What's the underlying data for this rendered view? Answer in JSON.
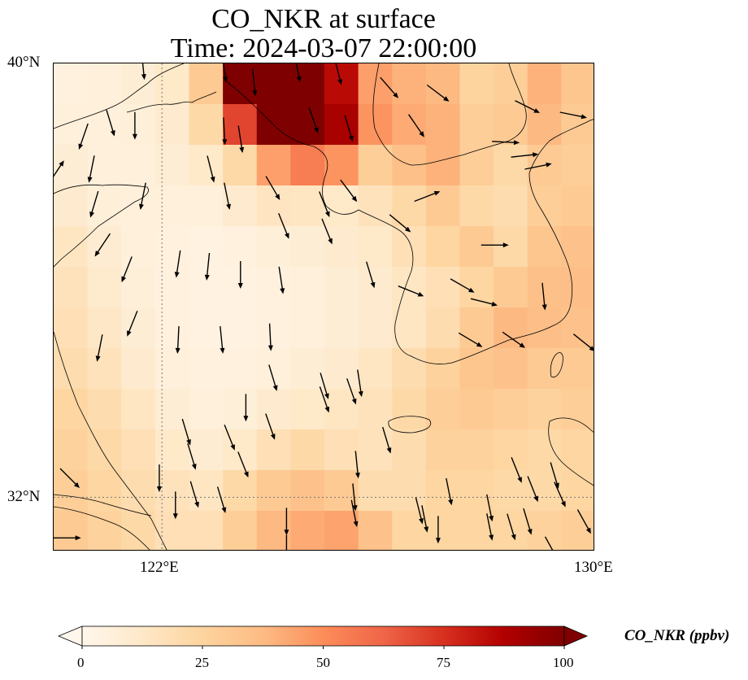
{
  "title": {
    "line1": "CO_NKR at surface",
    "line2": "Time: 2024-03-07 22:00:00"
  },
  "map": {
    "lat_labels": [
      "40°N",
      "32°N"
    ],
    "lon_labels": [
      "122°E",
      "130°E"
    ],
    "lat_range": [
      31,
      40
    ],
    "lon_range": [
      120,
      130
    ],
    "gridlines": {
      "lat": 32,
      "lon": 122,
      "style": "dotted"
    },
    "field_concentration_ppbv": [
      [
        5,
        6,
        8,
        12,
        30,
        100,
        100,
        100,
        85,
        45,
        40,
        38,
        25,
        28,
        40,
        32
      ],
      [
        6,
        6,
        7,
        10,
        22,
        70,
        100,
        100,
        90,
        48,
        42,
        40,
        28,
        30,
        38,
        30
      ],
      [
        8,
        6,
        6,
        8,
        12,
        22,
        45,
        55,
        48,
        28,
        35,
        40,
        28,
        22,
        30,
        28
      ],
      [
        10,
        7,
        6,
        6,
        6,
        10,
        15,
        14,
        12,
        16,
        22,
        30,
        22,
        20,
        28,
        30
      ],
      [
        14,
        9,
        6,
        5,
        4,
        5,
        7,
        8,
        10,
        12,
        18,
        24,
        30,
        22,
        32,
        34
      ],
      [
        16,
        11,
        7,
        5,
        4,
        4,
        5,
        6,
        8,
        10,
        14,
        18,
        24,
        30,
        35,
        36
      ],
      [
        18,
        13,
        8,
        5,
        4,
        4,
        5,
        6,
        8,
        10,
        14,
        20,
        30,
        38,
        36,
        34
      ],
      [
        20,
        16,
        10,
        6,
        5,
        5,
        6,
        8,
        10,
        14,
        20,
        26,
        32,
        34,
        30,
        30
      ],
      [
        24,
        20,
        14,
        8,
        6,
        7,
        10,
        12,
        14,
        16,
        22,
        28,
        30,
        28,
        26,
        28
      ],
      [
        26,
        22,
        18,
        12,
        9,
        12,
        18,
        22,
        18,
        16,
        20,
        26,
        26,
        24,
        22,
        24
      ],
      [
        28,
        24,
        20,
        16,
        14,
        22,
        30,
        34,
        30,
        20,
        20,
        24,
        24,
        22,
        22,
        24
      ],
      [
        30,
        26,
        22,
        18,
        18,
        28,
        38,
        42,
        44,
        34,
        24,
        24,
        24,
        24,
        26,
        28
      ]
    ],
    "wind_arrows": [
      {
        "lon": 121.65,
        "lat": 39.95,
        "u": 0.1,
        "v": -1.0
      },
      {
        "lon": 121.05,
        "lat": 38.9,
        "u": 0.3,
        "v": -1.0
      },
      {
        "lon": 121.5,
        "lat": 38.85,
        "u": 0.0,
        "v": -1.0
      },
      {
        "lon": 123.15,
        "lat": 39.9,
        "u": 0.15,
        "v": -1.0
      },
      {
        "lon": 123.7,
        "lat": 39.65,
        "u": 0.1,
        "v": -1.0
      },
      {
        "lon": 124.5,
        "lat": 39.9,
        "u": 0.2,
        "v": -1.0
      },
      {
        "lon": 125.25,
        "lat": 39.85,
        "u": 0.25,
        "v": -1.0
      },
      {
        "lon": 126.2,
        "lat": 39.55,
        "u": 0.65,
        "v": -0.75
      },
      {
        "lon": 127.1,
        "lat": 39.45,
        "u": 0.8,
        "v": -0.6
      },
      {
        "lon": 128.75,
        "lat": 39.2,
        "u": 1.0,
        "v": -0.5
      },
      {
        "lon": 129.6,
        "lat": 39.05,
        "u": 1.0,
        "v": -0.2
      },
      {
        "lon": 123.15,
        "lat": 38.75,
        "u": 0.05,
        "v": -1.0
      },
      {
        "lon": 123.45,
        "lat": 38.6,
        "u": 0.15,
        "v": -1.0
      },
      {
        "lon": 124.8,
        "lat": 38.95,
        "u": 0.35,
        "v": -1.0
      },
      {
        "lon": 125.45,
        "lat": 38.8,
        "u": 0.3,
        "v": -1.0
      },
      {
        "lon": 126.7,
        "lat": 38.85,
        "u": 0.55,
        "v": -0.8
      },
      {
        "lon": 128.35,
        "lat": 38.55,
        "u": 1.0,
        "v": -0.05
      },
      {
        "lon": 128.7,
        "lat": 38.3,
        "u": 0.9,
        "v": 0.1
      },
      {
        "lon": 128.95,
        "lat": 38.1,
        "u": 1.0,
        "v": 0.2
      },
      {
        "lon": 120.55,
        "lat": 38.65,
        "u": -0.35,
        "v": -1.0
      },
      {
        "lon": 120.7,
        "lat": 38.05,
        "u": -0.2,
        "v": -1.0
      },
      {
        "lon": 120.75,
        "lat": 37.4,
        "u": -0.3,
        "v": -1.0
      },
      {
        "lon": 121.65,
        "lat": 37.55,
        "u": -0.2,
        "v": -1.0
      },
      {
        "lon": 122.9,
        "lat": 38.05,
        "u": 0.25,
        "v": -1.0
      },
      {
        "lon": 123.2,
        "lat": 37.55,
        "u": 0.2,
        "v": -1.0
      },
      {
        "lon": 124.05,
        "lat": 37.7,
        "u": 0.5,
        "v": -0.85
      },
      {
        "lon": 124.25,
        "lat": 37.0,
        "u": 0.4,
        "v": -1.0
      },
      {
        "lon": 125.0,
        "lat": 37.4,
        "u": 0.4,
        "v": -1.0
      },
      {
        "lon": 125.05,
        "lat": 36.9,
        "u": 0.4,
        "v": -1.0
      },
      {
        "lon": 125.45,
        "lat": 37.65,
        "u": 0.6,
        "v": -0.8
      },
      {
        "lon": 126.4,
        "lat": 37.05,
        "u": 0.6,
        "v": -0.5
      },
      {
        "lon": 126.9,
        "lat": 37.55,
        "u": 0.9,
        "v": 0.35
      },
      {
        "lon": 128.15,
        "lat": 36.65,
        "u": 1.0,
        "v": 0.0
      },
      {
        "lon": 120.9,
        "lat": 36.65,
        "u": -0.6,
        "v": -0.9
      },
      {
        "lon": 121.35,
        "lat": 36.2,
        "u": -0.4,
        "v": -1.0
      },
      {
        "lon": 122.3,
        "lat": 36.3,
        "u": -0.15,
        "v": -1.0
      },
      {
        "lon": 122.85,
        "lat": 36.25,
        "u": -0.1,
        "v": -1.0
      },
      {
        "lon": 123.45,
        "lat": 36.1,
        "u": 0.0,
        "v": -1.0
      },
      {
        "lon": 124.2,
        "lat": 36.0,
        "u": 0.15,
        "v": -1.0
      },
      {
        "lon": 125.85,
        "lat": 36.1,
        "u": 0.3,
        "v": -1.0
      },
      {
        "lon": 126.6,
        "lat": 35.8,
        "u": 1.0,
        "v": -0.4
      },
      {
        "lon": 127.55,
        "lat": 35.9,
        "u": 0.7,
        "v": -0.4
      },
      {
        "lon": 127.95,
        "lat": 35.6,
        "u": 0.8,
        "v": -0.2
      },
      {
        "lon": 129.05,
        "lat": 35.7,
        "u": 0.1,
        "v": -1.0
      },
      {
        "lon": 121.45,
        "lat": 35.2,
        "u": -0.4,
        "v": -1.0
      },
      {
        "lon": 122.3,
        "lat": 34.9,
        "u": -0.05,
        "v": -1.0
      },
      {
        "lon": 123.1,
        "lat": 34.9,
        "u": 0.1,
        "v": -1.0
      },
      {
        "lon": 124.0,
        "lat": 34.95,
        "u": 0.05,
        "v": -1.0
      },
      {
        "lon": 124.05,
        "lat": 34.2,
        "u": 0.3,
        "v": -1.0
      },
      {
        "lon": 125.0,
        "lat": 34.05,
        "u": 0.3,
        "v": -1.0
      },
      {
        "lon": 125.0,
        "lat": 33.8,
        "u": 0.35,
        "v": -1.0
      },
      {
        "lon": 125.5,
        "lat": 33.95,
        "u": 0.35,
        "v": -1.0
      },
      {
        "lon": 125.65,
        "lat": 34.1,
        "u": 0.15,
        "v": -1.0
      },
      {
        "lon": 127.7,
        "lat": 34.9,
        "u": 1.0,
        "v": -0.6
      },
      {
        "lon": 128.5,
        "lat": 34.9,
        "u": 1.0,
        "v": -0.7
      },
      {
        "lon": 129.8,
        "lat": 34.85,
        "u": 1.0,
        "v": -0.8
      },
      {
        "lon": 120.85,
        "lat": 34.75,
        "u": -0.2,
        "v": -1.0
      },
      {
        "lon": 123.55,
        "lat": 33.65,
        "u": 0.0,
        "v": -1.0
      },
      {
        "lon": 124.0,
        "lat": 33.3,
        "u": 0.35,
        "v": -1.0
      },
      {
        "lon": 122.45,
        "lat": 33.2,
        "u": 0.3,
        "v": -1.0
      },
      {
        "lon": 123.25,
        "lat": 33.1,
        "u": 0.4,
        "v": -1.0
      },
      {
        "lon": 122.55,
        "lat": 32.75,
        "u": 0.3,
        "v": -1.0
      },
      {
        "lon": 123.5,
        "lat": 32.6,
        "u": 0.4,
        "v": -1.0
      },
      {
        "lon": 126.15,
        "lat": 33.05,
        "u": 0.3,
        "v": -1.0
      },
      {
        "lon": 128.55,
        "lat": 32.5,
        "u": 0.4,
        "v": -1.0
      },
      {
        "lon": 128.85,
        "lat": 32.15,
        "u": 0.4,
        "v": -1.0
      },
      {
        "lon": 129.25,
        "lat": 32.4,
        "u": 0.3,
        "v": -1.0
      },
      {
        "lon": 129.35,
        "lat": 32.05,
        "u": 0.4,
        "v": -0.9
      },
      {
        "lon": 127.3,
        "lat": 32.1,
        "u": 0.2,
        "v": -1.0
      },
      {
        "lon": 128.05,
        "lat": 31.8,
        "u": 0.2,
        "v": -1.0
      },
      {
        "lon": 126.75,
        "lat": 31.75,
        "u": 0.25,
        "v": -1.0
      },
      {
        "lon": 125.55,
        "lat": 31.7,
        "u": 0.2,
        "v": -1.0
      },
      {
        "lon": 124.3,
        "lat": 31.55,
        "u": 0.0,
        "v": -1.0
      },
      {
        "lon": 126.85,
        "lat": 31.6,
        "u": 0.2,
        "v": -1.0
      },
      {
        "lon": 121.95,
        "lat": 32.35,
        "u": 0.0,
        "v": -1.0
      },
      {
        "lon": 122.25,
        "lat": 31.85,
        "u": 0.0,
        "v": -1.0
      },
      {
        "lon": 122.6,
        "lat": 32.05,
        "u": 0.3,
        "v": -1.0
      },
      {
        "lon": 123.1,
        "lat": 31.95,
        "u": 0.3,
        "v": -1.0
      },
      {
        "lon": 125.6,
        "lat": 32.6,
        "u": 0.1,
        "v": -1.0
      },
      {
        "lon": 125.55,
        "lat": 32.0,
        "u": 0.1,
        "v": -1.0
      },
      {
        "lon": 127.1,
        "lat": 31.4,
        "u": 0.0,
        "v": -1.0
      },
      {
        "lon": 128.05,
        "lat": 31.45,
        "u": 0.2,
        "v": -1.0
      },
      {
        "lon": 128.45,
        "lat": 31.45,
        "u": 0.3,
        "v": -1.0
      },
      {
        "lon": 128.75,
        "lat": 31.55,
        "u": 0.3,
        "v": -1.0
      },
      {
        "lon": 129.2,
        "lat": 31.05,
        "u": 0.5,
        "v": -0.9
      },
      {
        "lon": 129.8,
        "lat": 31.55,
        "u": 0.5,
        "v": -0.9
      },
      {
        "lon": 120.3,
        "lat": 32.35,
        "u": 0.6,
        "v": -0.6
      },
      {
        "lon": 120.25,
        "lat": 31.25,
        "u": 1.0,
        "v": 0.0
      },
      {
        "lon": 124.3,
        "lat": 31.05,
        "u": 0.0,
        "v": -1.0
      },
      {
        "lon": 120.05,
        "lat": 38.0,
        "u": 0.4,
        "v": 0.6
      }
    ]
  },
  "colorbar": {
    "title": "CO_NKR (ppbv)",
    "range": [
      0,
      100
    ],
    "extend": "both",
    "ticks": [
      "0",
      "25",
      "50",
      "75",
      "100"
    ],
    "colormap": [
      "#fff7ec",
      "#fee8c8",
      "#fdd49e",
      "#fdbb84",
      "#fc8d59",
      "#ef6548",
      "#d7301f",
      "#b30000",
      "#7f0000"
    ]
  }
}
